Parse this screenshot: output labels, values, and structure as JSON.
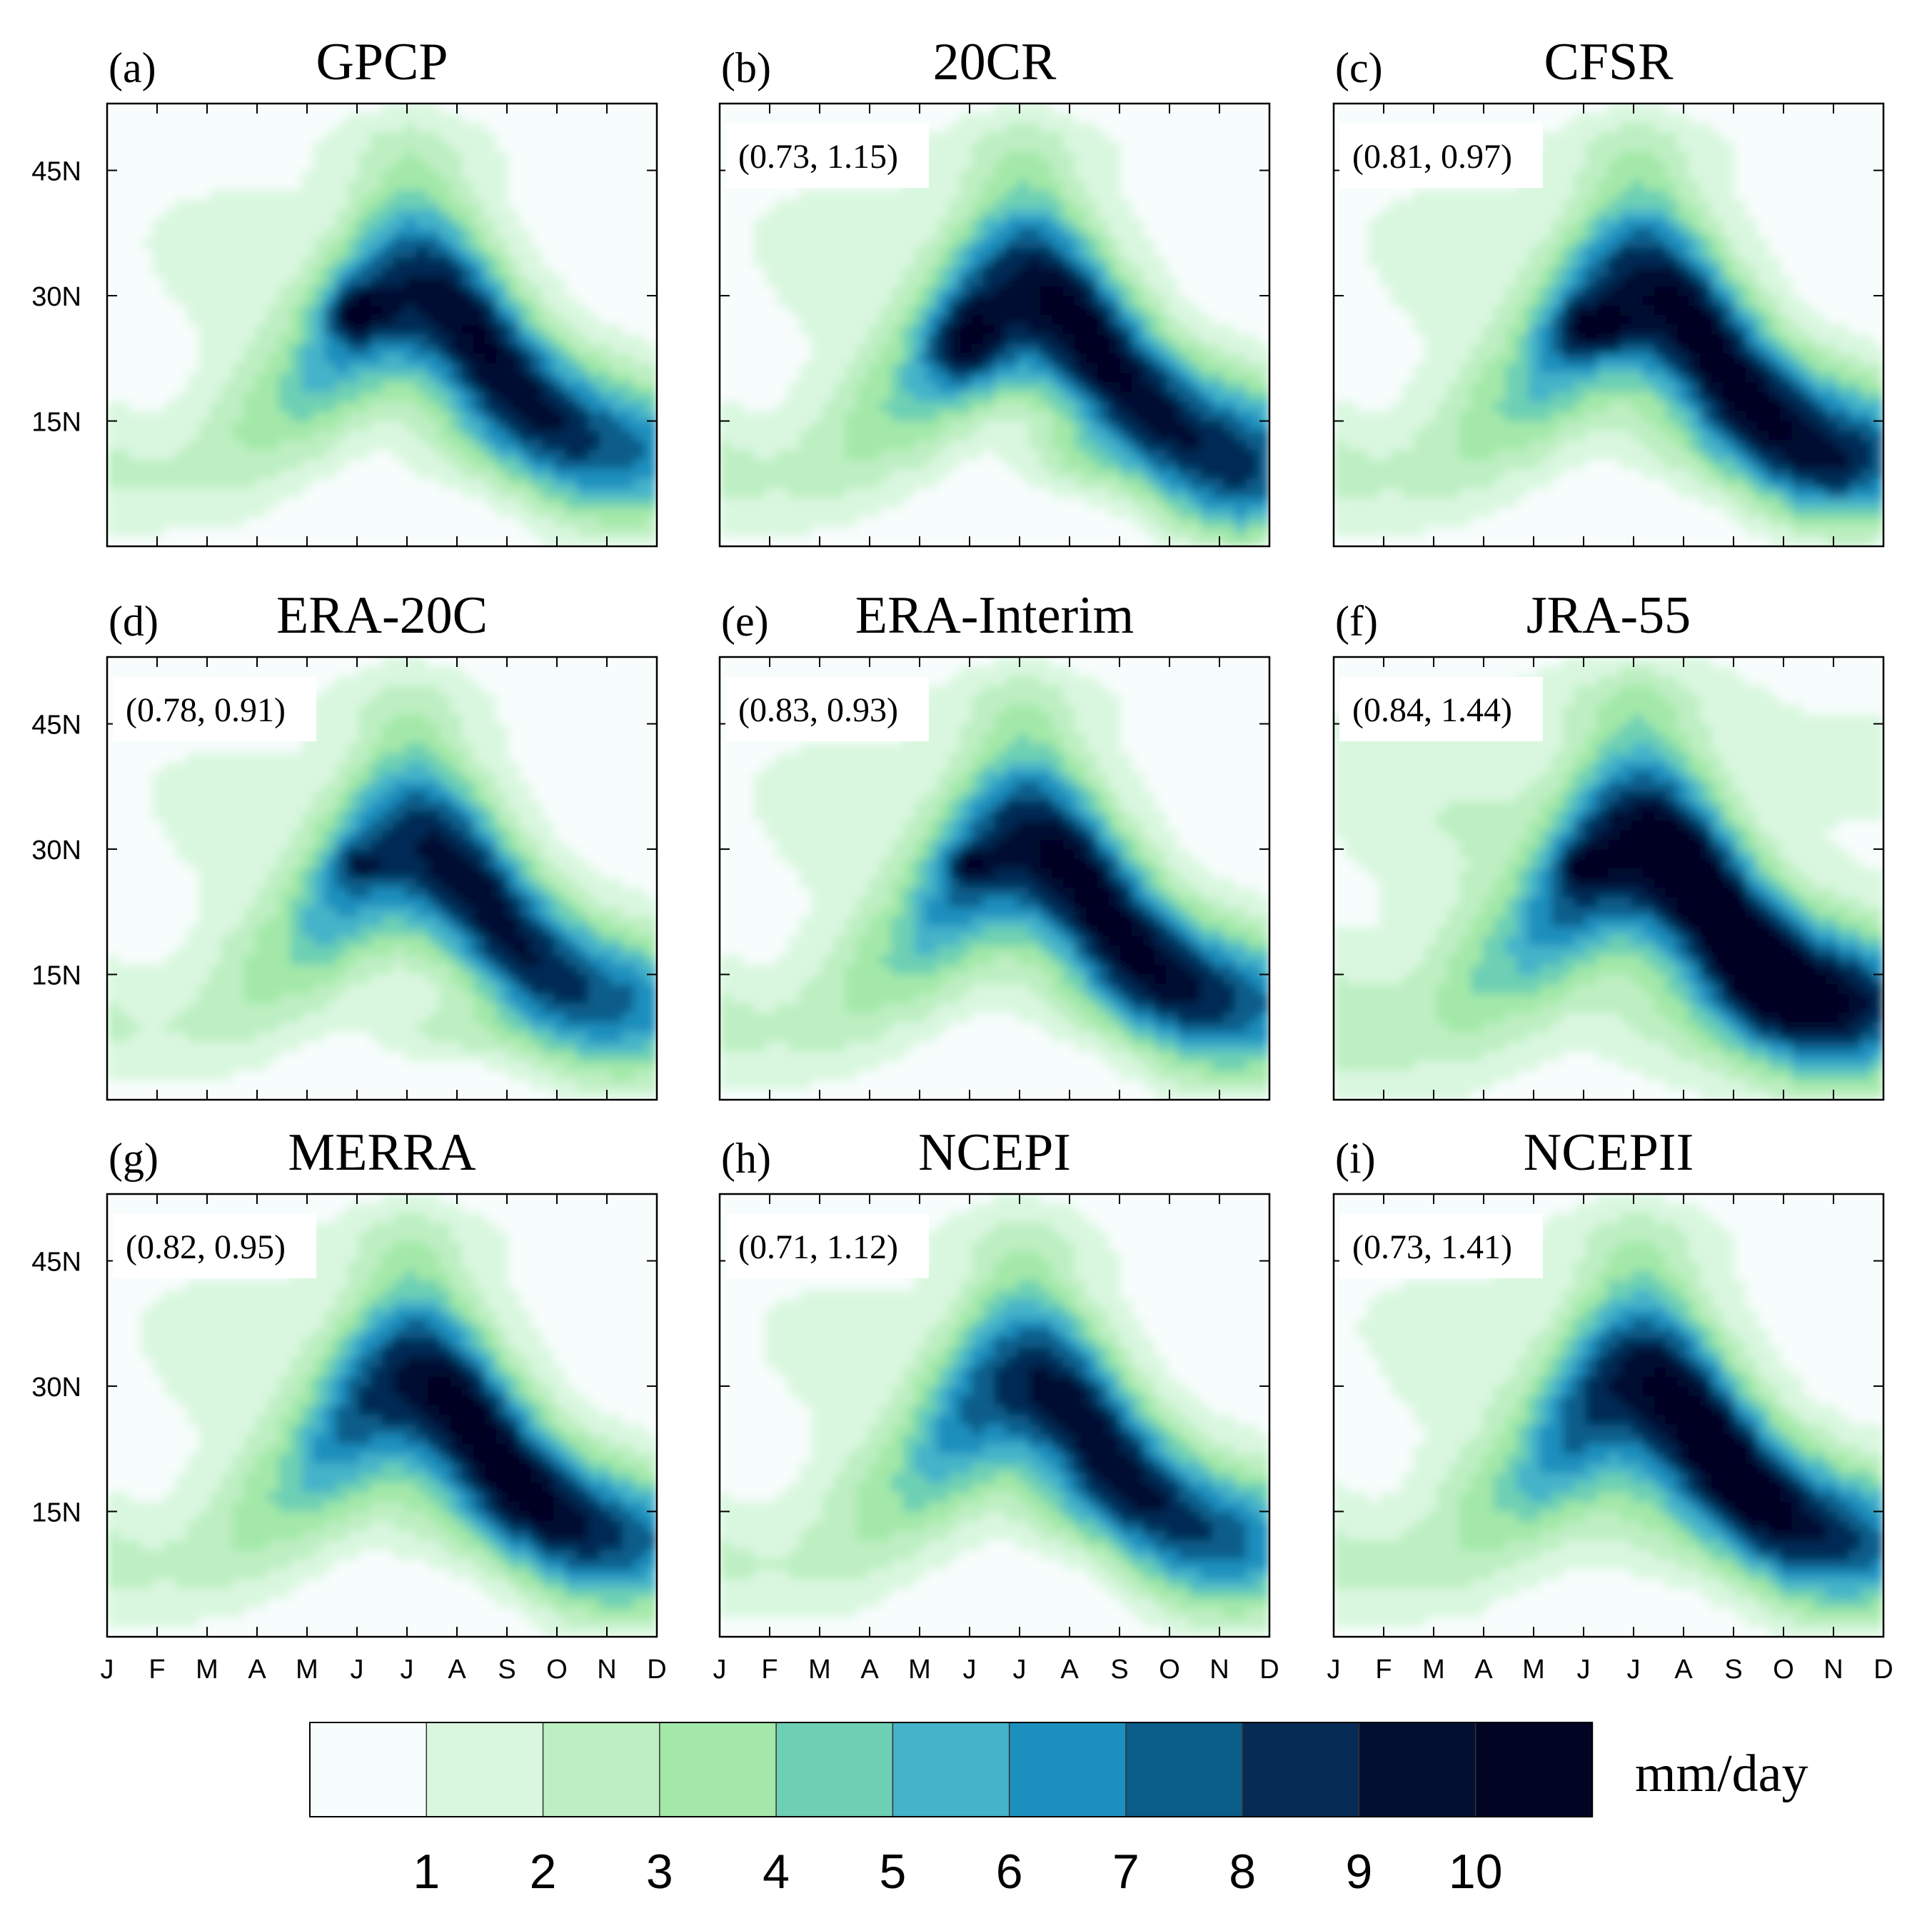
{
  "figure": {
    "colorbar": {
      "unit": "mm/day",
      "ticks": [
        "1",
        "2",
        "3",
        "4",
        "5",
        "6",
        "7",
        "8",
        "9",
        "10"
      ],
      "colors": [
        "#f7fdfc",
        "#d9f7df",
        "#bdefc2",
        "#a3e8a8",
        "#6dd0b4",
        "#45b3c9",
        "#1c8fbe",
        "#0b5d8a",
        "#062c55",
        "#030f30",
        "#010423"
      ]
    }
  },
  "chart_data": [
    {
      "panel": "(a)",
      "title": "GPCP",
      "annotation": "",
      "type": "heatmap",
      "xlabel": "",
      "ylabel": "",
      "x_ticks": [],
      "y_ticks": [
        "45N",
        "30N",
        "15N"
      ],
      "features": {
        "main_peak": {
          "month": "Aug",
          "lat_deg": 14,
          "max_mm_day": 10
        },
        "secondary_peak": {
          "month": "Jun",
          "lat_deg": 28,
          "max_mm_day": 9
        }
      }
    },
    {
      "panel": "(b)",
      "title": "20CR",
      "annotation": "(0.73, 1.15)",
      "type": "heatmap",
      "xlabel": "",
      "ylabel": "",
      "x_ticks": [],
      "y_ticks": [],
      "features": {
        "main_peak": {
          "month": "Jul",
          "lat_deg": 22,
          "max_mm_day": 10
        },
        "secondary_peak": {
          "month": "Aug",
          "lat_deg": 10,
          "max_mm_day": 10
        }
      }
    },
    {
      "panel": "(c)",
      "title": "CFSR",
      "annotation": "(0.81, 0.97)",
      "type": "heatmap",
      "xlabel": "",
      "ylabel": "",
      "x_ticks": [],
      "y_ticks": [],
      "features": {
        "main_peak": {
          "month": "Aug",
          "lat_deg": 12,
          "max_mm_day": 10
        },
        "secondary_peak": {
          "month": "Jun",
          "lat_deg": 26,
          "max_mm_day": 9
        }
      }
    },
    {
      "panel": "(d)",
      "title": "ERA-20C",
      "annotation": "(0.78, 0.91)",
      "type": "heatmap",
      "xlabel": "",
      "ylabel": "",
      "x_ticks": [],
      "y_ticks": [
        "45N",
        "30N",
        "15N"
      ],
      "features": {
        "main_peak": {
          "month": "Aug",
          "lat_deg": 9,
          "max_mm_day": 10
        },
        "secondary_peak": {
          "month": "Jun",
          "lat_deg": 28,
          "max_mm_day": 8
        }
      }
    },
    {
      "panel": "(e)",
      "title": "ERA-Interim",
      "annotation": "(0.83, 0.93)",
      "type": "heatmap",
      "xlabel": "",
      "ylabel": "",
      "x_ticks": [],
      "y_ticks": [],
      "features": {
        "main_peak": {
          "month": "Aug",
          "lat_deg": 12,
          "max_mm_day": 10
        },
        "secondary_peak": {
          "month": "Jun",
          "lat_deg": 28,
          "max_mm_day": 9
        }
      }
    },
    {
      "panel": "(f)",
      "title": "JRA-55",
      "annotation": "(0.84, 1.44)",
      "type": "heatmap",
      "xlabel": "",
      "ylabel": "",
      "x_ticks": [],
      "y_ticks": [],
      "features": {
        "main_peak": {
          "month": "Aug",
          "lat_deg": 12,
          "max_mm_day": 10
        },
        "secondary_peak": {
          "month": "Jun",
          "lat_deg": 28,
          "max_mm_day": 9
        }
      }
    },
    {
      "panel": "(g)",
      "title": "MERRA",
      "annotation": "(0.82, 0.95)",
      "type": "heatmap",
      "xlabel": "",
      "ylabel": "",
      "x_ticks": [
        "J",
        "F",
        "M",
        "A",
        "M",
        "J",
        "J",
        "A",
        "S",
        "O",
        "N",
        "D"
      ],
      "y_ticks": [
        "45N",
        "30N",
        "15N"
      ],
      "features": {
        "main_peak": {
          "month": "Aug",
          "lat_deg": 13,
          "max_mm_day": 10
        }
      }
    },
    {
      "panel": "(h)",
      "title": "NCEPI",
      "annotation": "(0.71, 1.12)",
      "type": "heatmap",
      "xlabel": "",
      "ylabel": "",
      "x_ticks": [
        "J",
        "F",
        "M",
        "A",
        "M",
        "J",
        "J",
        "A",
        "S",
        "O",
        "N",
        "D"
      ],
      "y_ticks": [],
      "features": {
        "main_peak": {
          "month": "Aug",
          "lat_deg": 14,
          "max_mm_day": 10
        }
      }
    },
    {
      "panel": "(i)",
      "title": "NCEPII",
      "annotation": "(0.73, 1.41)",
      "type": "heatmap",
      "xlabel": "",
      "ylabel": "",
      "x_ticks": [
        "J",
        "F",
        "M",
        "A",
        "M",
        "J",
        "J",
        "A",
        "S",
        "O",
        "N",
        "D"
      ],
      "y_ticks": [],
      "features": {
        "main_peak": {
          "month": "Aug",
          "lat_deg": 12,
          "max_mm_day": 10
        }
      }
    }
  ]
}
